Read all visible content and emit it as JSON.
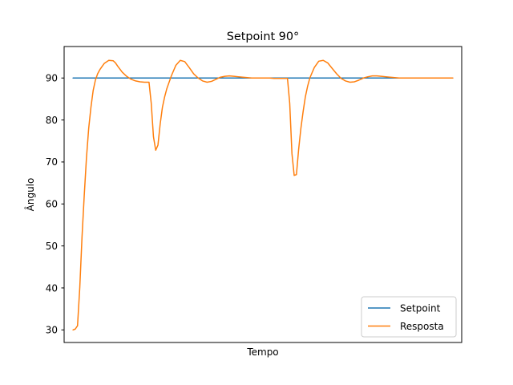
{
  "chart_data": {
    "type": "line",
    "title": "Setpoint 90°",
    "xlabel": "Tempo",
    "ylabel": "Ângulo",
    "xticks_shown": false,
    "ylim": [
      27,
      97.5
    ],
    "xlim": [
      -4,
      174
    ],
    "yticks": [
      30,
      40,
      50,
      60,
      70,
      80,
      90
    ],
    "grid": false,
    "legend_position": "lower right",
    "series": [
      {
        "name": "Setpoint",
        "color": "#1f77b4",
        "x": [
          0,
          170
        ],
        "y": [
          90,
          90
        ]
      },
      {
        "name": "Resposta",
        "color": "#ff7f0e",
        "x": [
          0,
          1,
          2,
          3,
          4,
          5,
          6,
          7,
          8,
          9,
          10,
          11,
          12,
          14,
          16,
          18,
          19,
          20,
          22,
          24,
          26,
          28,
          30,
          32,
          34,
          35,
          36,
          37,
          38,
          39,
          40,
          41,
          42,
          44,
          46,
          48,
          50,
          52,
          54,
          56,
          58,
          60,
          62,
          64,
          66,
          68,
          70,
          72,
          74,
          76,
          78,
          80,
          82,
          84,
          86,
          88,
          90,
          92,
          94,
          96,
          97,
          98,
          99,
          100,
          101,
          102,
          103,
          104,
          105,
          106,
          108,
          110,
          112,
          114,
          116,
          118,
          120,
          122,
          124,
          126,
          128,
          130,
          132,
          134,
          136,
          138,
          140,
          142,
          144,
          146,
          148,
          150,
          152,
          154,
          156,
          158,
          160,
          162,
          164,
          166,
          168,
          170
        ],
        "y": [
          30,
          30.2,
          31,
          40,
          52,
          62,
          71,
          78,
          83,
          87,
          89.5,
          91,
          92,
          93.5,
          94.2,
          94.1,
          93.6,
          92.8,
          91.4,
          90.4,
          89.7,
          89.3,
          89.1,
          89.0,
          89.0,
          84,
          76,
          72.8,
          74,
          79,
          83,
          85.5,
          87.5,
          90.5,
          93,
          94.2,
          93.9,
          92.5,
          91,
          90,
          89.3,
          89.0,
          89.2,
          89.7,
          90.2,
          90.4,
          90.5,
          90.4,
          90.3,
          90.2,
          90.1,
          90.0,
          90.0,
          90.0,
          90.0,
          90.0,
          89.9,
          89.9,
          89.9,
          89.9,
          84,
          72,
          66.8,
          67,
          73,
          78,
          82,
          85.5,
          88,
          90,
          92.5,
          94,
          94.2,
          93.6,
          92.3,
          91,
          89.9,
          89.3,
          89.0,
          89.1,
          89.5,
          90.0,
          90.3,
          90.5,
          90.5,
          90.4,
          90.3,
          90.2,
          90.1,
          90.0,
          90.0,
          90.0,
          90.0,
          90.0,
          90.0,
          90.0,
          90.0,
          90.0,
          90.0,
          90.0,
          90.0,
          90.0
        ]
      }
    ]
  }
}
